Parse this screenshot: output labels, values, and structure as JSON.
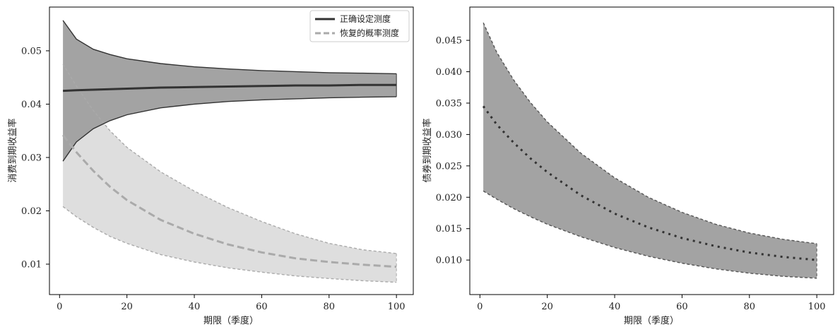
{
  "chart_data": [
    {
      "type": "line",
      "title": "",
      "xlabel": "期限（季度）",
      "ylabel": "消费到期收益率",
      "xlim": [
        -3,
        105
      ],
      "ylim": [
        0.0043,
        0.0582
      ],
      "xticks": [
        0,
        20,
        40,
        60,
        80,
        100
      ],
      "yticks": [
        0.01,
        0.02,
        0.03,
        0.04,
        0.05
      ],
      "x_tick_labels": [
        "0",
        "20",
        "40",
        "60",
        "80",
        "100"
      ],
      "y_tick_labels": [
        "0.01",
        "0.02",
        "0.03",
        "0.04",
        "0.05"
      ],
      "grid": false,
      "legend": "top-right",
      "series": [
        {
          "name": "正确设定测度",
          "color": "#333333",
          "style": "solid",
          "band_fill": "#a3a3a3",
          "x": [
            1,
            5,
            10,
            15,
            20,
            30,
            40,
            50,
            60,
            70,
            80,
            90,
            100
          ],
          "mean": [
            0.0425,
            0.0426,
            0.0427,
            0.0428,
            0.0429,
            0.0431,
            0.0432,
            0.0433,
            0.0434,
            0.0435,
            0.0435,
            0.0436,
            0.0436
          ],
          "upper": [
            0.0557,
            0.0522,
            0.0503,
            0.0493,
            0.0485,
            0.0476,
            0.047,
            0.0466,
            0.0463,
            0.0461,
            0.0459,
            0.0458,
            0.0457
          ],
          "lower": [
            0.0293,
            0.0329,
            0.0354,
            0.0369,
            0.038,
            0.0393,
            0.04,
            0.0405,
            0.0408,
            0.041,
            0.0412,
            0.0413,
            0.0414
          ]
        },
        {
          "name": "恢复的概率测度",
          "color": "#aaaaaa",
          "style": "dashed",
          "band_fill": "#dedede",
          "x": [
            1,
            5,
            10,
            15,
            20,
            30,
            40,
            50,
            60,
            70,
            80,
            90,
            100
          ],
          "mean": [
            0.0342,
            0.031,
            0.0275,
            0.0245,
            0.022,
            0.0183,
            0.0157,
            0.0137,
            0.0122,
            0.0111,
            0.0104,
            0.0099,
            0.0095
          ],
          "upper": [
            0.0475,
            0.0434,
            0.0388,
            0.035,
            0.0319,
            0.0273,
            0.0237,
            0.0206,
            0.018,
            0.0157,
            0.0139,
            0.0127,
            0.012
          ],
          "lower": [
            0.0208,
            0.0189,
            0.0169,
            0.0152,
            0.0139,
            0.0118,
            0.0104,
            0.0093,
            0.0085,
            0.0078,
            0.0073,
            0.0069,
            0.0066
          ]
        }
      ]
    },
    {
      "type": "line",
      "title": "",
      "xlabel": "期限（季度）",
      "ylabel": "债券到期收益率",
      "xlim": [
        -3,
        105
      ],
      "ylim": [
        0.0045,
        0.0503
      ],
      "xticks": [
        0,
        20,
        40,
        60,
        80,
        100
      ],
      "yticks": [
        0.01,
        0.015,
        0.02,
        0.025,
        0.03,
        0.035,
        0.04,
        0.045
      ],
      "x_tick_labels": [
        "0",
        "20",
        "40",
        "60",
        "80",
        "100"
      ],
      "y_tick_labels": [
        "0.010",
        "0.015",
        "0.020",
        "0.025",
        "0.030",
        "0.035",
        "0.040",
        "0.045"
      ],
      "grid": false,
      "legend": "none",
      "series": [
        {
          "color": "#333333",
          "style": "dotted",
          "band_fill": "#a3a3a3",
          "x": [
            1,
            5,
            10,
            15,
            20,
            30,
            40,
            50,
            60,
            70,
            80,
            90,
            100
          ],
          "mean": [
            0.0345,
            0.0316,
            0.0287,
            0.0262,
            0.024,
            0.0203,
            0.0174,
            0.0152,
            0.0135,
            0.0122,
            0.0112,
            0.0105,
            0.01
          ],
          "upper": [
            0.0478,
            0.0431,
            0.0387,
            0.0351,
            0.032,
            0.027,
            0.0231,
            0.02,
            0.0176,
            0.0157,
            0.0143,
            0.0133,
            0.0126
          ],
          "lower": [
            0.021,
            0.0197,
            0.0182,
            0.0169,
            0.0157,
            0.0137,
            0.012,
            0.0106,
            0.0095,
            0.0086,
            0.0079,
            0.0074,
            0.0071
          ]
        }
      ]
    }
  ]
}
